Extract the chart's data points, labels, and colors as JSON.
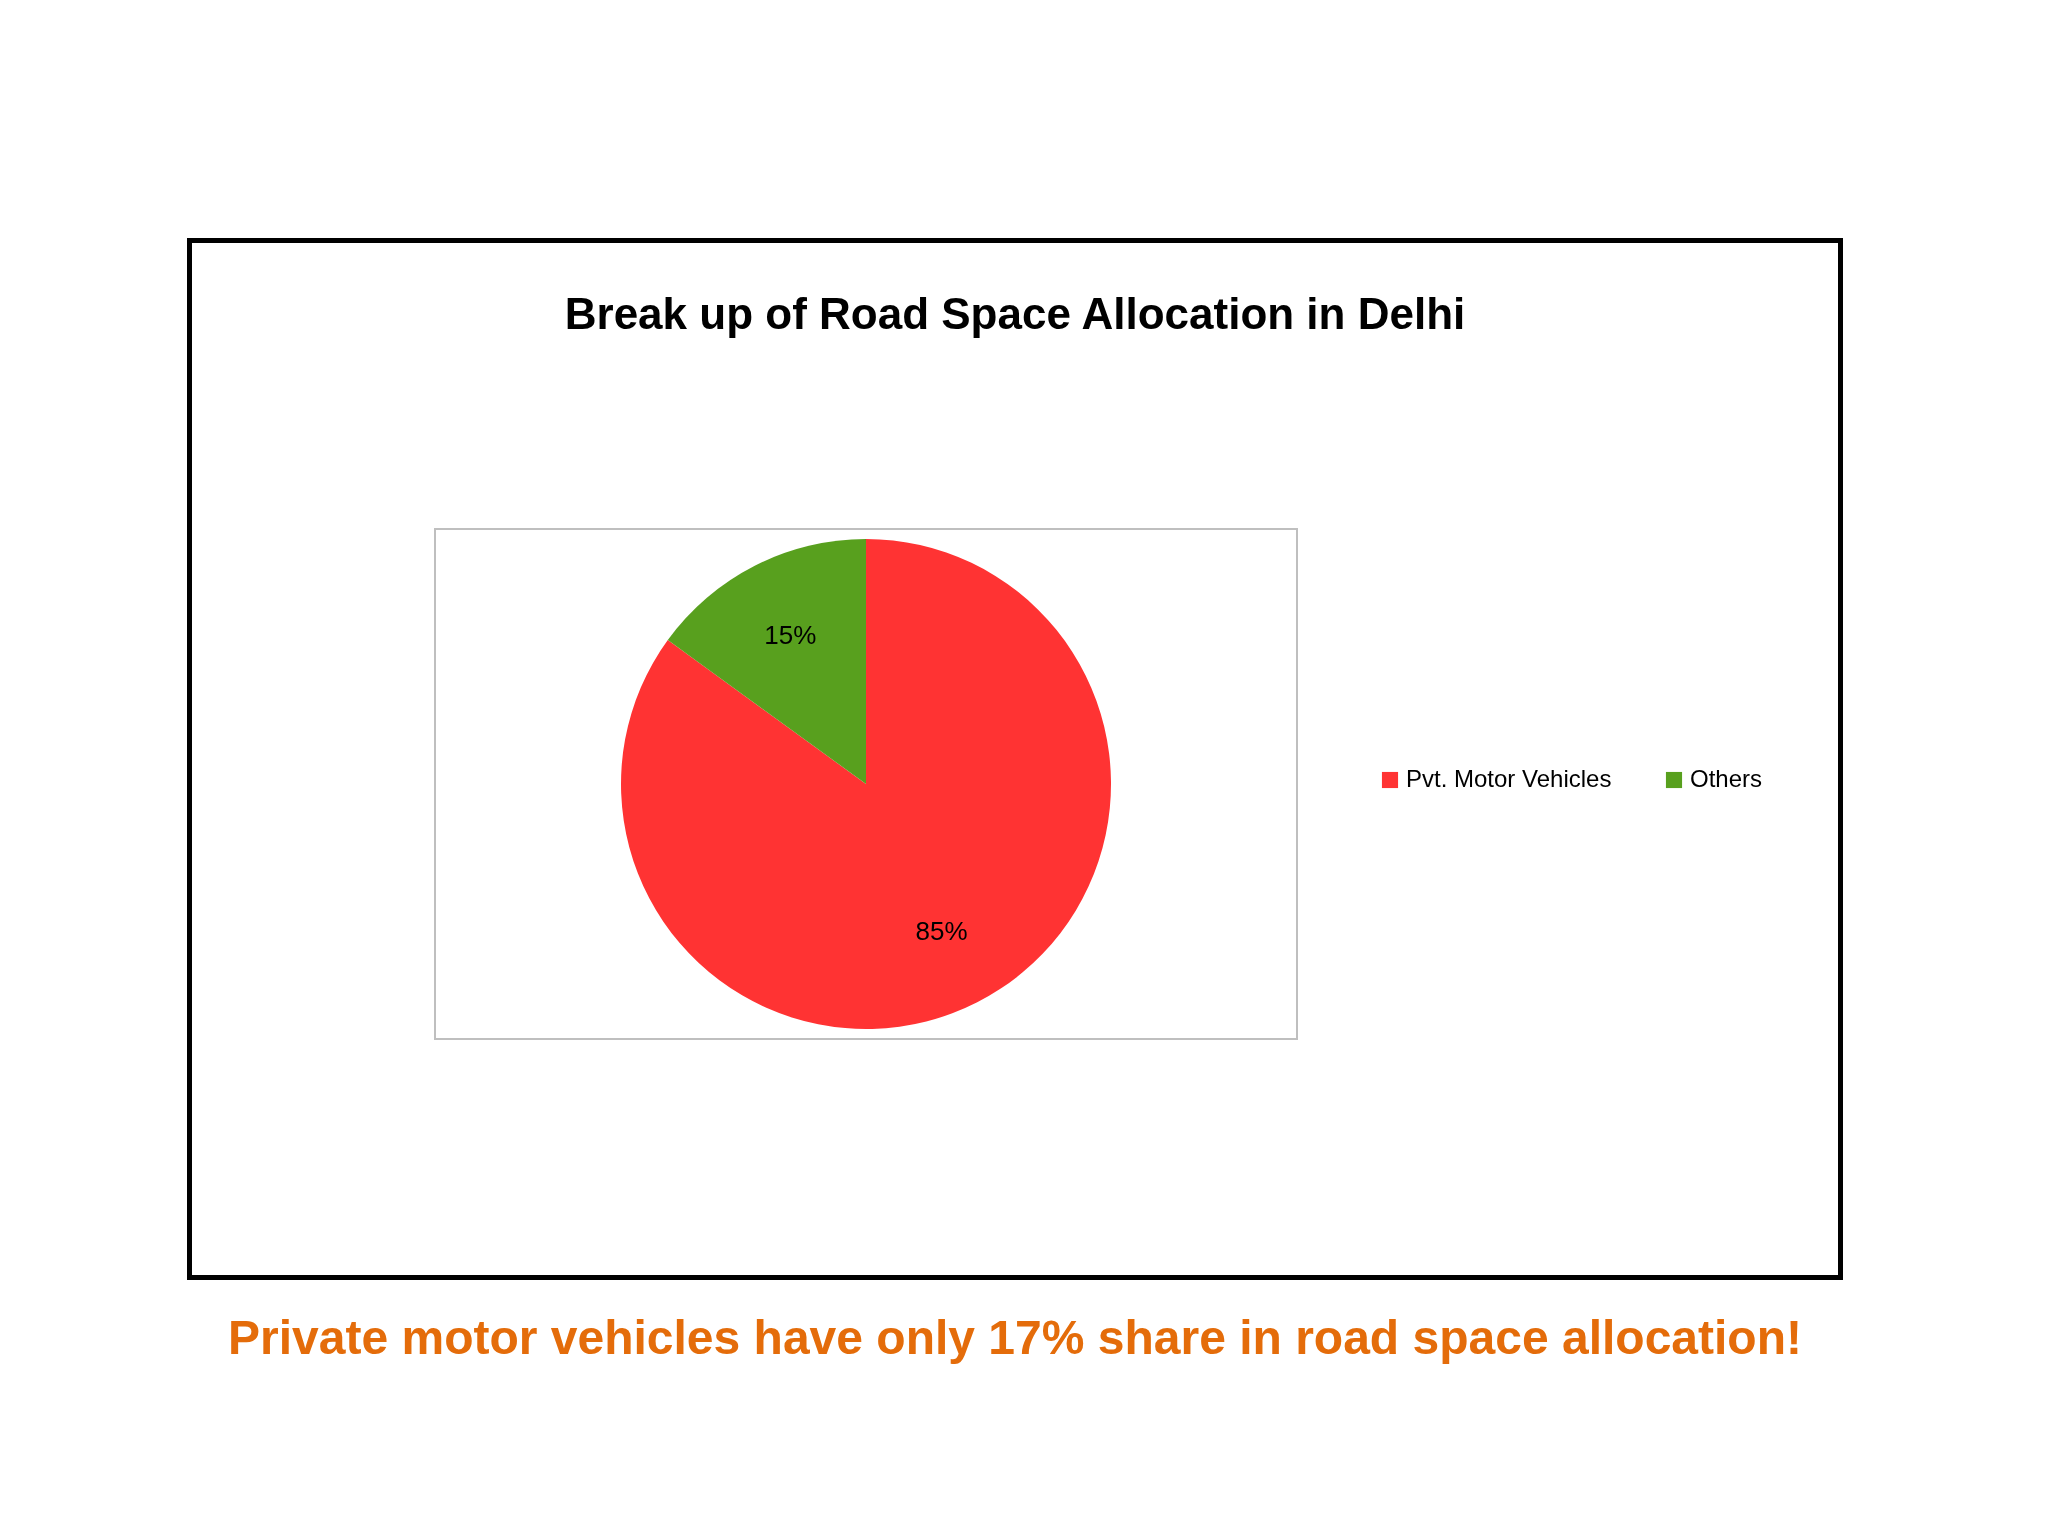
{
  "chart_data": {
    "type": "pie",
    "title": "Break up of Road Space Allocation in Delhi",
    "categories": [
      "Pvt. Motor Vehicles",
      "Others"
    ],
    "values": [
      85,
      15
    ],
    "colors": [
      "#ff3333",
      "#58a01e"
    ],
    "value_labels": [
      "85%",
      "15%"
    ],
    "legend": "right",
    "annotations": [
      "Private motor vehicles have only 17% share in road space allocation!"
    ]
  }
}
